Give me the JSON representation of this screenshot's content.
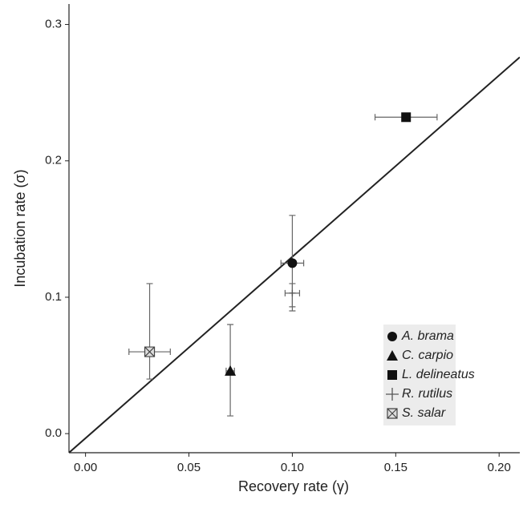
{
  "chart_data": {
    "type": "scatter",
    "xlabel": "Recovery rate (γ)",
    "ylabel": "Incubation rate (σ)",
    "xlim": [
      -0.008,
      0.21
    ],
    "ylim": [
      -0.014,
      0.315
    ],
    "xticks": [
      {
        "value": 0,
        "label": "0.00"
      },
      {
        "value": 0.05,
        "label": "0.05"
      },
      {
        "value": 0.1,
        "label": "0.10"
      },
      {
        "value": 0.15,
        "label": "0.15"
      },
      {
        "value": 0.2,
        "label": "0.20"
      }
    ],
    "yticks": [
      {
        "value": 0,
        "label": "0.0"
      },
      0.1,
      0.2,
      0.3
    ],
    "line": {
      "x": [
        -0.008,
        0.21
      ],
      "y": [
        -0.014,
        0.276
      ],
      "color": "#222222"
    },
    "legend": "bottom-right",
    "series": [
      {
        "name": "A. brama",
        "marker": "circle",
        "color": "#111111",
        "x": 0.1,
        "y": 0.125,
        "xerr": [
          0.0945,
          0.1055
        ],
        "yerr": [
          0.09,
          0.16
        ]
      },
      {
        "name": "C. carpio",
        "marker": "triangle",
        "color": "#111111",
        "x": 0.07,
        "y": 0.046,
        "xerr": [
          0.068,
          0.072
        ],
        "yerr": [
          0.013,
          0.08
        ]
      },
      {
        "name": "L. delineatus",
        "marker": "square",
        "color": "#111111",
        "x": 0.155,
        "y": 0.232,
        "xerr": [
          0.14,
          0.17
        ],
        "yerr": [
          0.229,
          0.235
        ]
      },
      {
        "name": "R. rutilus",
        "marker": "plus",
        "color": "#555555",
        "x": 0.1,
        "y": 0.103,
        "xerr": [
          0.0965,
          0.1035
        ],
        "yerr": [
          0.093,
          0.11
        ]
      },
      {
        "name": "S. salar",
        "marker": "xsquare",
        "color": "#444444",
        "x": 0.031,
        "y": 0.06,
        "xerr": [
          0.021,
          0.041
        ],
        "yerr": [
          0.04,
          0.11
        ]
      }
    ]
  }
}
